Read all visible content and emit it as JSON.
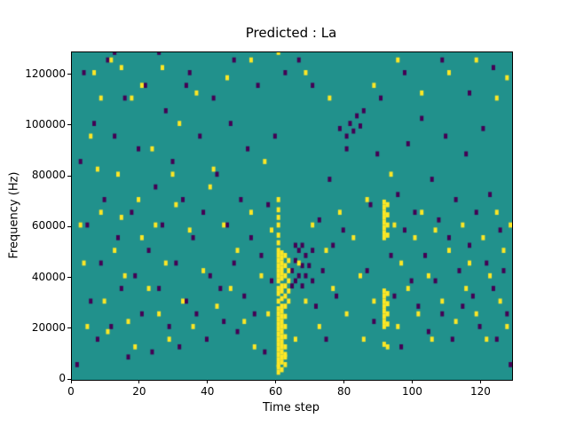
{
  "figure": {
    "title": "Predicted : La"
  },
  "chart_data": {
    "type": "heatmap",
    "title": "Predicted : La",
    "xlabel": "Time step",
    "ylabel": "Frequency (Hz)",
    "x_range": [
      0,
      129
    ],
    "y_range_hz": [
      0,
      129000
    ],
    "xticks": [
      0,
      20,
      40,
      60,
      80,
      100,
      120
    ],
    "yticks_hz": [
      0,
      20000,
      40000,
      60000,
      80000,
      100000,
      120000
    ],
    "grid": false,
    "legend": "none",
    "colors": {
      "background": "#21918c",
      "high": "#fde725",
      "low": "#440154"
    },
    "cells_unit": "each cell is [time_step_index, frequency_kHz]",
    "yellow_cells": [
      [
        60,
        2
      ],
      [
        60,
        4
      ],
      [
        60,
        5
      ],
      [
        60,
        7
      ],
      [
        60,
        9
      ],
      [
        60,
        11
      ],
      [
        60,
        13
      ],
      [
        60,
        15
      ],
      [
        60,
        17
      ],
      [
        60,
        19
      ],
      [
        60,
        21
      ],
      [
        60,
        23
      ],
      [
        60,
        25
      ],
      [
        60,
        27
      ],
      [
        60,
        30
      ],
      [
        60,
        33
      ],
      [
        60,
        35
      ],
      [
        60,
        38
      ],
      [
        60,
        40
      ],
      [
        60,
        42
      ],
      [
        60,
        44
      ],
      [
        60,
        46
      ],
      [
        60,
        48
      ],
      [
        60,
        50
      ],
      [
        60,
        53
      ],
      [
        60,
        56
      ],
      [
        60,
        60
      ],
      [
        60,
        63
      ],
      [
        60,
        66
      ],
      [
        60,
        70
      ],
      [
        60,
        128
      ],
      [
        61,
        3
      ],
      [
        61,
        6
      ],
      [
        61,
        8
      ],
      [
        61,
        10
      ],
      [
        61,
        12
      ],
      [
        61,
        14
      ],
      [
        61,
        16
      ],
      [
        61,
        18
      ],
      [
        61,
        20
      ],
      [
        61,
        22
      ],
      [
        61,
        24
      ],
      [
        61,
        26
      ],
      [
        61,
        28
      ],
      [
        61,
        31
      ],
      [
        61,
        34
      ],
      [
        61,
        36
      ],
      [
        61,
        39
      ],
      [
        61,
        41
      ],
      [
        61,
        43
      ],
      [
        61,
        45
      ],
      [
        61,
        47
      ],
      [
        61,
        49
      ],
      [
        62,
        5
      ],
      [
        62,
        8
      ],
      [
        62,
        9
      ],
      [
        62,
        12
      ],
      [
        62,
        16
      ],
      [
        62,
        20
      ],
      [
        62,
        24
      ],
      [
        62,
        28
      ],
      [
        62,
        32
      ],
      [
        62,
        36
      ],
      [
        62,
        40
      ],
      [
        62,
        44
      ],
      [
        62,
        48
      ],
      [
        63,
        30
      ],
      [
        63,
        34
      ],
      [
        63,
        38
      ],
      [
        63,
        42
      ],
      [
        63,
        46
      ],
      [
        91,
        13
      ],
      [
        91,
        20
      ],
      [
        91,
        22
      ],
      [
        91,
        24
      ],
      [
        91,
        26
      ],
      [
        91,
        28
      ],
      [
        91,
        30
      ],
      [
        91,
        32
      ],
      [
        91,
        34
      ],
      [
        91,
        55
      ],
      [
        91,
        57
      ],
      [
        91,
        59
      ],
      [
        91,
        61
      ],
      [
        91,
        63
      ],
      [
        91,
        65
      ],
      [
        91,
        67
      ],
      [
        91,
        69
      ],
      [
        92,
        12
      ],
      [
        92,
        21
      ],
      [
        92,
        25
      ],
      [
        92,
        29
      ],
      [
        92,
        33
      ],
      [
        92,
        56
      ],
      [
        92,
        60
      ],
      [
        92,
        64
      ],
      [
        92,
        68
      ],
      [
        2,
        60
      ],
      [
        3,
        45
      ],
      [
        4,
        20
      ],
      [
        5,
        95
      ],
      [
        6,
        120
      ],
      [
        7,
        82
      ],
      [
        8,
        65
      ],
      [
        8,
        110
      ],
      [
        9,
        30
      ],
      [
        10,
        18
      ],
      [
        11,
        125
      ],
      [
        12,
        50
      ],
      [
        13,
        80
      ],
      [
        14,
        63
      ],
      [
        14,
        122
      ],
      [
        15,
        40
      ],
      [
        16,
        22
      ],
      [
        17,
        110
      ],
      [
        18,
        12
      ],
      [
        19,
        70
      ],
      [
        20,
        55
      ],
      [
        20,
        115
      ],
      [
        22,
        35
      ],
      [
        23,
        90
      ],
      [
        24,
        60
      ],
      [
        25,
        25
      ],
      [
        26,
        122
      ],
      [
        27,
        45
      ],
      [
        28,
        15
      ],
      [
        29,
        80
      ],
      [
        30,
        68
      ],
      [
        31,
        100
      ],
      [
        32,
        30
      ],
      [
        34,
        58
      ],
      [
        35,
        20
      ],
      [
        36,
        112
      ],
      [
        38,
        42
      ],
      [
        40,
        75
      ],
      [
        41,
        82
      ],
      [
        42,
        28
      ],
      [
        44,
        60
      ],
      [
        45,
        118
      ],
      [
        46,
        35
      ],
      [
        48,
        50
      ],
      [
        50,
        22
      ],
      [
        52,
        65
      ],
      [
        52,
        125
      ],
      [
        53,
        12
      ],
      [
        55,
        40
      ],
      [
        56,
        85
      ],
      [
        57,
        25
      ],
      [
        58,
        58
      ],
      [
        65,
        15
      ],
      [
        66,
        45
      ],
      [
        68,
        30
      ],
      [
        68,
        120
      ],
      [
        70,
        60
      ],
      [
        72,
        20
      ],
      [
        74,
        50
      ],
      [
        75,
        110
      ],
      [
        76,
        35
      ],
      [
        78,
        65
      ],
      [
        80,
        25
      ],
      [
        82,
        55
      ],
      [
        84,
        40
      ],
      [
        85,
        15
      ],
      [
        86,
        70
      ],
      [
        88,
        30
      ],
      [
        88,
        115
      ],
      [
        93,
        80
      ],
      [
        94,
        60
      ],
      [
        95,
        20
      ],
      [
        95,
        125
      ],
      [
        96,
        45
      ],
      [
        98,
        35
      ],
      [
        100,
        55
      ],
      [
        101,
        25
      ],
      [
        102,
        65
      ],
      [
        102,
        112
      ],
      [
        104,
        40
      ],
      [
        105,
        15
      ],
      [
        106,
        58
      ],
      [
        108,
        30
      ],
      [
        110,
        50
      ],
      [
        110,
        120
      ],
      [
        112,
        22
      ],
      [
        114,
        60
      ],
      [
        115,
        35
      ],
      [
        116,
        45
      ],
      [
        118,
        25
      ],
      [
        118,
        125
      ],
      [
        120,
        55
      ],
      [
        121,
        15
      ],
      [
        122,
        40
      ],
      [
        124,
        65
      ],
      [
        124,
        110
      ],
      [
        125,
        30
      ],
      [
        126,
        50
      ],
      [
        127,
        20
      ],
      [
        127,
        118
      ],
      [
        128,
        60
      ]
    ],
    "dark_cells": [
      [
        1,
        5
      ],
      [
        2,
        85
      ],
      [
        3,
        120
      ],
      [
        4,
        60
      ],
      [
        5,
        30
      ],
      [
        6,
        100
      ],
      [
        7,
        15
      ],
      [
        8,
        45
      ],
      [
        9,
        70
      ],
      [
        10,
        125
      ],
      [
        11,
        20
      ],
      [
        12,
        95
      ],
      [
        12,
        128
      ],
      [
        13,
        55
      ],
      [
        14,
        35
      ],
      [
        15,
        110
      ],
      [
        16,
        8
      ],
      [
        17,
        65
      ],
      [
        18,
        40
      ],
      [
        19,
        90
      ],
      [
        20,
        25
      ],
      [
        21,
        115
      ],
      [
        22,
        50
      ],
      [
        23,
        10
      ],
      [
        24,
        75
      ],
      [
        25,
        35
      ],
      [
        25,
        128
      ],
      [
        26,
        60
      ],
      [
        27,
        105
      ],
      [
        28,
        20
      ],
      [
        29,
        85
      ],
      [
        30,
        45
      ],
      [
        31,
        12
      ],
      [
        32,
        70
      ],
      [
        33,
        30
      ],
      [
        33,
        115
      ],
      [
        34,
        120
      ],
      [
        35,
        55
      ],
      [
        36,
        25
      ],
      [
        37,
        95
      ],
      [
        38,
        65
      ],
      [
        39,
        15
      ],
      [
        40,
        40
      ],
      [
        41,
        110
      ],
      [
        42,
        80
      ],
      [
        43,
        35
      ],
      [
        44,
        22
      ],
      [
        45,
        60
      ],
      [
        46,
        100
      ],
      [
        47,
        45
      ],
      [
        47,
        125
      ],
      [
        48,
        18
      ],
      [
        49,
        70
      ],
      [
        50,
        32
      ],
      [
        51,
        90
      ],
      [
        52,
        55
      ],
      [
        53,
        25
      ],
      [
        54,
        115
      ],
      [
        55,
        48
      ],
      [
        56,
        10
      ],
      [
        57,
        68
      ],
      [
        58,
        38
      ],
      [
        59,
        95
      ],
      [
        64,
        36
      ],
      [
        64,
        42
      ],
      [
        65,
        38
      ],
      [
        65,
        46
      ],
      [
        65,
        52
      ],
      [
        66,
        40
      ],
      [
        66,
        50
      ],
      [
        66,
        125
      ],
      [
        67,
        36
      ],
      [
        67,
        44
      ],
      [
        67,
        52
      ],
      [
        68,
        40
      ],
      [
        68,
        48
      ],
      [
        69,
        44
      ],
      [
        70,
        38
      ],
      [
        70,
        50
      ],
      [
        70,
        115
      ],
      [
        71,
        28
      ],
      [
        72,
        62
      ],
      [
        73,
        42
      ],
      [
        74,
        15
      ],
      [
        75,
        78
      ],
      [
        76,
        52
      ],
      [
        77,
        32
      ],
      [
        78,
        98
      ],
      [
        79,
        58
      ],
      [
        80,
        90
      ],
      [
        80,
        95
      ],
      [
        81,
        100
      ],
      [
        82,
        97
      ],
      [
        83,
        103
      ],
      [
        84,
        99
      ],
      [
        85,
        105
      ],
      [
        86,
        42
      ],
      [
        87,
        68
      ],
      [
        88,
        22
      ],
      [
        89,
        88
      ],
      [
        90,
        110
      ],
      [
        93,
        48
      ],
      [
        94,
        32
      ],
      [
        95,
        72
      ],
      [
        96,
        12
      ],
      [
        97,
        58
      ],
      [
        97,
        120
      ],
      [
        98,
        92
      ],
      [
        99,
        38
      ],
      [
        100,
        65
      ],
      [
        101,
        28
      ],
      [
        102,
        102
      ],
      [
        103,
        48
      ],
      [
        104,
        18
      ],
      [
        105,
        78
      ],
      [
        106,
        38
      ],
      [
        107,
        62
      ],
      [
        108,
        25
      ],
      [
        108,
        125
      ],
      [
        109,
        95
      ],
      [
        110,
        55
      ],
      [
        111,
        15
      ],
      [
        112,
        70
      ],
      [
        113,
        42
      ],
      [
        114,
        28
      ],
      [
        115,
        88
      ],
      [
        116,
        52
      ],
      [
        116,
        112
      ],
      [
        117,
        32
      ],
      [
        118,
        65
      ],
      [
        119,
        20
      ],
      [
        120,
        98
      ],
      [
        121,
        45
      ],
      [
        122,
        72
      ],
      [
        123,
        35
      ],
      [
        123,
        122
      ],
      [
        124,
        15
      ],
      [
        125,
        58
      ],
      [
        126,
        42
      ],
      [
        127,
        25
      ],
      [
        128,
        5
      ],
      [
        62,
        120
      ]
    ]
  }
}
